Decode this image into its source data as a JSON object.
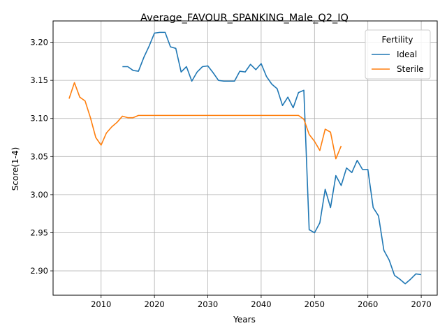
{
  "chart_data": {
    "type": "line",
    "title": "Average_FAVOUR_SPANKING_Male_Q2_IQ",
    "xlabel": "Years",
    "ylabel": "Score(1-4)",
    "xlim": [
      2001,
      2073
    ],
    "ylim": [
      2.868,
      3.228
    ],
    "xticks": [
      2010,
      2020,
      2030,
      2040,
      2050,
      2060,
      2070
    ],
    "yticks": [
      2.9,
      2.95,
      3.0,
      3.05,
      3.1,
      3.15,
      3.2
    ],
    "grid": true,
    "legend": {
      "title": "Fertility",
      "placement": "top-right"
    },
    "series": [
      {
        "name": "Ideal",
        "color": "#1f77b4",
        "x": [
          2014,
          2015,
          2016,
          2017,
          2018,
          2019,
          2020,
          2021,
          2022,
          2023,
          2024,
          2025,
          2026,
          2027,
          2028,
          2029,
          2030,
          2031,
          2032,
          2033,
          2034,
          2035,
          2036,
          2037,
          2038,
          2039,
          2040,
          2041,
          2042,
          2043,
          2044,
          2045,
          2046,
          2047,
          2048,
          2049,
          2050,
          2051,
          2052,
          2053,
          2054,
          2055,
          2056,
          2057,
          2058,
          2059,
          2060,
          2061,
          2062,
          2063,
          2064,
          2065,
          2066,
          2067,
          2068,
          2069,
          2070
        ],
        "values": [
          3.168,
          3.168,
          3.163,
          3.162,
          3.18,
          3.195,
          3.212,
          3.213,
          3.213,
          3.194,
          3.192,
          3.161,
          3.168,
          3.149,
          3.161,
          3.168,
          3.169,
          3.16,
          3.15,
          3.149,
          3.149,
          3.149,
          3.162,
          3.161,
          3.171,
          3.164,
          3.172,
          3.155,
          3.145,
          3.139,
          3.117,
          3.128,
          3.114,
          3.134,
          3.137,
          2.954,
          2.95,
          2.963,
          3.007,
          2.983,
          3.025,
          3.012,
          3.035,
          3.029,
          3.045,
          3.033,
          3.033,
          2.983,
          2.972,
          2.927,
          2.914,
          2.894,
          2.889,
          2.883,
          2.889,
          2.896,
          2.895
        ]
      },
      {
        "name": "Sterile",
        "color": "#ff7f0e",
        "x": [
          2004,
          2005,
          2006,
          2007,
          2008,
          2009,
          2010,
          2011,
          2012,
          2013,
          2014,
          2015,
          2016,
          2017,
          2018,
          2019,
          2020,
          2025,
          2030,
          2035,
          2040,
          2045,
          2047,
          2048,
          2049,
          2050,
          2051,
          2052,
          2053,
          2054,
          2055
        ],
        "values": [
          3.126,
          3.147,
          3.128,
          3.123,
          3.101,
          3.075,
          3.065,
          3.081,
          3.089,
          3.095,
          3.103,
          3.101,
          3.101,
          3.104,
          3.104,
          3.104,
          3.104,
          3.104,
          3.104,
          3.104,
          3.104,
          3.104,
          3.104,
          3.099,
          3.079,
          3.07,
          3.058,
          3.086,
          3.082,
          3.047,
          3.064
        ]
      }
    ]
  }
}
